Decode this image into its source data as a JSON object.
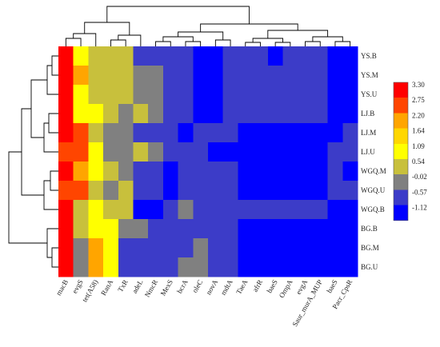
{
  "chart_data": {
    "type": "heatmap",
    "title": "",
    "xlabel": "",
    "ylabel": "",
    "rows": [
      "YS.B",
      "YS.M",
      "YS.U",
      "LJ.B",
      "LJ.M",
      "LJ.U",
      "WGQ.M",
      "WGQ.U",
      "WGQ.B",
      "BG.B",
      "BG.M",
      "BG.U"
    ],
    "columns": [
      "macB",
      "evgS",
      "tet(A58)",
      "RanA",
      "TxR",
      "adeL",
      "NmcR",
      "MexS",
      "bcrA",
      "oleC",
      "novA",
      "mdtA",
      "TaeA",
      "afrR",
      "baeS",
      "OmpA",
      "evgA",
      "Saur_murA_MUP",
      "baeS",
      "Pacr_CpsR"
    ],
    "values": [
      [
        3.3,
        1.09,
        0.54,
        0.54,
        0.54,
        -0.57,
        -0.57,
        -0.57,
        -0.57,
        -1.12,
        -1.12,
        -0.57,
        -0.57,
        -0.57,
        -1.12,
        -0.57,
        -0.57,
        -0.57,
        -1.12,
        -1.12
      ],
      [
        3.3,
        2.2,
        0.54,
        0.54,
        0.54,
        -0.02,
        -0.02,
        -0.57,
        -0.57,
        -1.12,
        -1.12,
        -0.57,
        -0.57,
        -0.57,
        -0.57,
        -0.57,
        -0.57,
        -0.57,
        -1.12,
        -1.12
      ],
      [
        3.3,
        1.09,
        0.54,
        0.54,
        0.54,
        -0.02,
        -0.02,
        -0.57,
        -0.57,
        -1.12,
        -1.12,
        -0.57,
        -0.57,
        -0.57,
        -0.57,
        -0.57,
        -0.57,
        -0.57,
        -1.12,
        -1.12
      ],
      [
        3.3,
        1.09,
        1.09,
        0.54,
        -0.02,
        0.54,
        -0.02,
        -0.57,
        -0.57,
        -1.12,
        -1.12,
        -0.57,
        -0.57,
        -0.57,
        -0.57,
        -0.57,
        -0.57,
        -0.57,
        -1.12,
        -1.12
      ],
      [
        3.3,
        2.75,
        0.54,
        -0.02,
        -0.02,
        -0.57,
        -0.57,
        -0.57,
        -1.12,
        -0.57,
        -0.57,
        -0.57,
        -1.12,
        -1.12,
        -1.12,
        -1.12,
        -1.12,
        -1.12,
        -1.12,
        -0.57
      ],
      [
        2.75,
        2.75,
        1.09,
        -0.02,
        -0.02,
        0.54,
        -0.02,
        -0.57,
        -0.57,
        -0.57,
        -1.12,
        -1.12,
        -1.12,
        -1.12,
        -1.12,
        -1.12,
        -1.12,
        -1.12,
        -0.57,
        -0.57
      ],
      [
        3.3,
        2.2,
        1.09,
        0.54,
        -0.02,
        -0.57,
        -0.57,
        -1.12,
        -0.57,
        -0.57,
        -0.57,
        -0.57,
        -1.12,
        -1.12,
        -1.12,
        -1.12,
        -1.12,
        -1.12,
        -0.57,
        -1.12
      ],
      [
        2.75,
        2.75,
        0.54,
        -0.02,
        0.54,
        -0.57,
        -0.57,
        -1.12,
        -0.57,
        -0.57,
        -0.57,
        -0.57,
        -1.12,
        -1.12,
        -1.12,
        -1.12,
        -1.12,
        -1.12,
        -0.57,
        -0.57
      ],
      [
        3.3,
        0.54,
        1.09,
        0.54,
        0.54,
        -1.12,
        -1.12,
        -0.57,
        -0.02,
        -0.57,
        -0.57,
        -0.57,
        -0.57,
        -0.57,
        -0.57,
        -0.57,
        -0.57,
        -0.57,
        -1.12,
        -1.12
      ],
      [
        3.3,
        0.54,
        1.09,
        1.09,
        -0.02,
        -0.02,
        -0.57,
        -0.57,
        -0.57,
        -0.57,
        -0.57,
        -0.57,
        -1.12,
        -1.12,
        -1.12,
        -1.12,
        -1.12,
        -1.12,
        -1.12,
        -1.12
      ],
      [
        3.3,
        -0.02,
        2.2,
        1.09,
        -0.57,
        -0.57,
        -0.57,
        -0.57,
        -0.57,
        -0.02,
        -0.57,
        -0.57,
        -1.12,
        -1.12,
        -1.12,
        -1.12,
        -1.12,
        -1.12,
        -1.12,
        -1.12
      ],
      [
        3.3,
        -0.02,
        2.2,
        1.09,
        -0.57,
        -0.57,
        -0.57,
        -0.57,
        -0.02,
        -0.02,
        -0.57,
        -0.57,
        -1.12,
        -1.12,
        -1.12,
        -1.12,
        -1.12,
        -1.12,
        -1.12,
        -1.12
      ]
    ],
    "colorscale": [
      {
        "value": 3.3,
        "color": "#ff0000"
      },
      {
        "value": 2.75,
        "color": "#ff4500"
      },
      {
        "value": 2.2,
        "color": "#ffa500"
      },
      {
        "value": 1.64,
        "color": "#ffd700"
      },
      {
        "value": 1.09,
        "color": "#ffff00"
      },
      {
        "value": 0.54,
        "color": "#c8c03c"
      },
      {
        "value": -0.02,
        "color": "#808080"
      },
      {
        "value": -0.57,
        "color": "#3c3cc8"
      },
      {
        "value": -1.12,
        "color": "#0000ff"
      }
    ],
    "legend_ticks": [
      "3.30",
      "2.75",
      "2.20",
      "1.64",
      "1.09",
      "0.54",
      "-0.02",
      "-0.57",
      "-1.12"
    ],
    "legend_position": "right",
    "row_dendrogram": "left",
    "column_dendrogram": "top"
  }
}
